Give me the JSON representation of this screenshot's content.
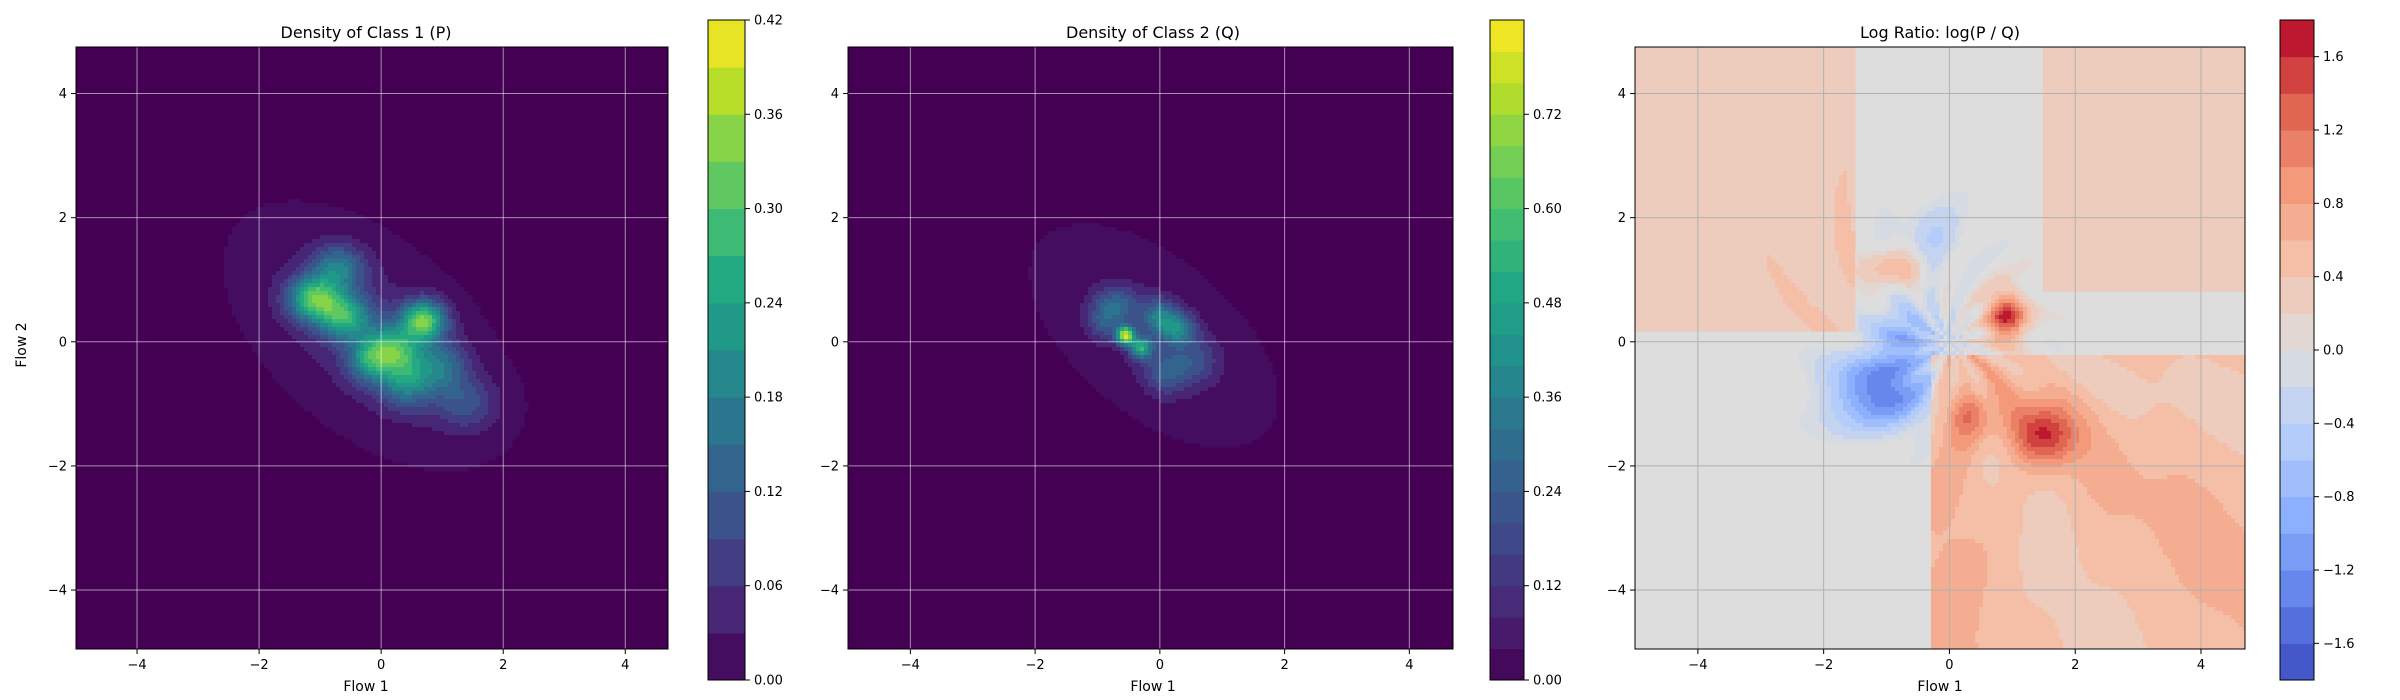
{
  "chart_data": [
    {
      "type": "heatmap",
      "title": "Density of Class 1 (P)",
      "xlabel": "Flow 1",
      "ylabel": "Flow 2",
      "xlim": [
        -5.0,
        4.7
      ],
      "ylim": [
        -4.95,
        4.75
      ],
      "xticks": [
        -4,
        -2,
        0,
        2,
        4
      ],
      "yticks": [
        -4,
        -2,
        0,
        2,
        4
      ],
      "grid": true,
      "colormap": "viridis",
      "colorbar": {
        "ticks": [
          "0.00",
          "0.06",
          "0.12",
          "0.18",
          "0.24",
          "0.30",
          "0.36",
          "0.42"
        ],
        "range": [
          0,
          0.42
        ],
        "vmax_scale": 0.8
      },
      "density": {
        "blobs": [
          {
            "x": -0.2,
            "y": 0.1,
            "sx": 1.25,
            "sy": 0.7,
            "angle": -40,
            "amp": 0.05
          },
          {
            "x": -1.1,
            "y": 0.7,
            "sx": 0.3,
            "sy": 0.25,
            "angle": 0,
            "amp": 0.21
          },
          {
            "x": -0.6,
            "y": 0.4,
            "sx": 0.3,
            "sy": 0.25,
            "angle": 0,
            "amp": 0.17
          },
          {
            "x": 0.7,
            "y": 0.35,
            "sx": 0.25,
            "sy": 0.22,
            "angle": 0,
            "amp": 0.24
          },
          {
            "x": 0.2,
            "y": -0.1,
            "sx": 0.3,
            "sy": 0.25,
            "angle": 0,
            "amp": 0.16
          },
          {
            "x": 0.4,
            "y": -0.6,
            "sx": 0.3,
            "sy": 0.3,
            "angle": 0,
            "amp": 0.14
          },
          {
            "x": -0.2,
            "y": -0.3,
            "sx": 0.25,
            "sy": 0.25,
            "angle": 0,
            "amp": 0.13
          },
          {
            "x": 1.0,
            "y": -0.4,
            "sx": 0.3,
            "sy": 0.3,
            "angle": 0,
            "amp": 0.1
          },
          {
            "x": -0.7,
            "y": 1.2,
            "sx": 0.3,
            "sy": 0.25,
            "angle": 0,
            "amp": 0.12
          },
          {
            "x": 1.4,
            "y": -1.0,
            "sx": 0.35,
            "sy": 0.3,
            "angle": 0,
            "amp": 0.07
          }
        ]
      }
    },
    {
      "type": "heatmap",
      "title": "Density of Class 2 (Q)",
      "xlabel": "Flow 1",
      "ylabel": "",
      "xlim": [
        -5.0,
        4.7
      ],
      "ylim": [
        -4.95,
        4.75
      ],
      "xticks": [
        -4,
        -2,
        0,
        2,
        4
      ],
      "yticks": [
        -4,
        -2,
        0,
        2,
        4
      ],
      "grid": true,
      "colormap": "viridis",
      "colorbar": {
        "ticks": [
          "0.00",
          "0.12",
          "0.24",
          "0.36",
          "0.48",
          "0.60",
          "0.72"
        ],
        "range": [
          0,
          0.84
        ],
        "vmax_scale": 1.0
      },
      "density": {
        "blobs": [
          {
            "x": -0.1,
            "y": 0.1,
            "sx": 0.95,
            "sy": 0.5,
            "angle": -40,
            "amp": 0.09
          },
          {
            "x": -0.55,
            "y": 0.1,
            "sx": 0.1,
            "sy": 0.1,
            "angle": 0,
            "amp": 0.72
          },
          {
            "x": -0.3,
            "y": -0.1,
            "sx": 0.12,
            "sy": 0.12,
            "angle": 0,
            "amp": 0.45
          },
          {
            "x": 0.0,
            "y": 0.4,
            "sx": 0.2,
            "sy": 0.2,
            "angle": 0,
            "amp": 0.28
          },
          {
            "x": 0.3,
            "y": 0.2,
            "sx": 0.2,
            "sy": 0.18,
            "angle": 0,
            "amp": 0.3
          },
          {
            "x": -0.7,
            "y": 0.6,
            "sx": 0.25,
            "sy": 0.2,
            "angle": 0,
            "amp": 0.22
          },
          {
            "x": 0.1,
            "y": -0.5,
            "sx": 0.25,
            "sy": 0.25,
            "angle": 0,
            "amp": 0.2
          },
          {
            "x": 0.6,
            "y": -0.3,
            "sx": 0.25,
            "sy": 0.25,
            "angle": 0,
            "amp": 0.14
          },
          {
            "x": -0.9,
            "y": 0.3,
            "sx": 0.2,
            "sy": 0.2,
            "angle": 0,
            "amp": 0.16
          }
        ]
      }
    },
    {
      "type": "heatmap",
      "title": "Log Ratio: log(P / Q)",
      "xlabel": "Flow 1",
      "ylabel": "",
      "xlim": [
        -5.0,
        4.7
      ],
      "ylim": [
        -4.95,
        4.75
      ],
      "xticks": [
        -4,
        -2,
        0,
        2,
        4
      ],
      "yticks": [
        -4,
        -2,
        0,
        2,
        4
      ],
      "grid": true,
      "colormap": "coolwarm",
      "colorbar": {
        "ticks": [
          "-1.6",
          "-1.2",
          "-0.8",
          "-0.4",
          "0.0",
          "0.4",
          "0.8",
          "1.2",
          "1.6"
        ],
        "range": [
          -1.8,
          1.8
        ]
      },
      "ratio": {
        "regions": [
          {
            "x": -1.1,
            "y": -0.8,
            "sx": 0.55,
            "sy": 0.4,
            "amp": -1.4
          },
          {
            "x": -0.7,
            "y": 0.1,
            "sx": 0.35,
            "sy": 0.35,
            "amp": -0.8
          },
          {
            "x": 0.9,
            "y": 0.4,
            "sx": 0.22,
            "sy": 0.28,
            "amp": 1.6
          },
          {
            "x": -0.9,
            "y": 1.2,
            "sx": 0.3,
            "sy": 0.2,
            "amp": 0.7
          },
          {
            "x": 1.5,
            "y": -1.5,
            "sx": 0.35,
            "sy": 0.35,
            "amp": 1.1
          },
          {
            "x": 0.4,
            "y": -1.2,
            "sx": 0.3,
            "sy": 0.3,
            "amp": 0.7
          },
          {
            "x": -0.3,
            "y": 1.7,
            "sx": 0.4,
            "sy": 0.4,
            "amp": -0.35
          }
        ]
      }
    }
  ]
}
